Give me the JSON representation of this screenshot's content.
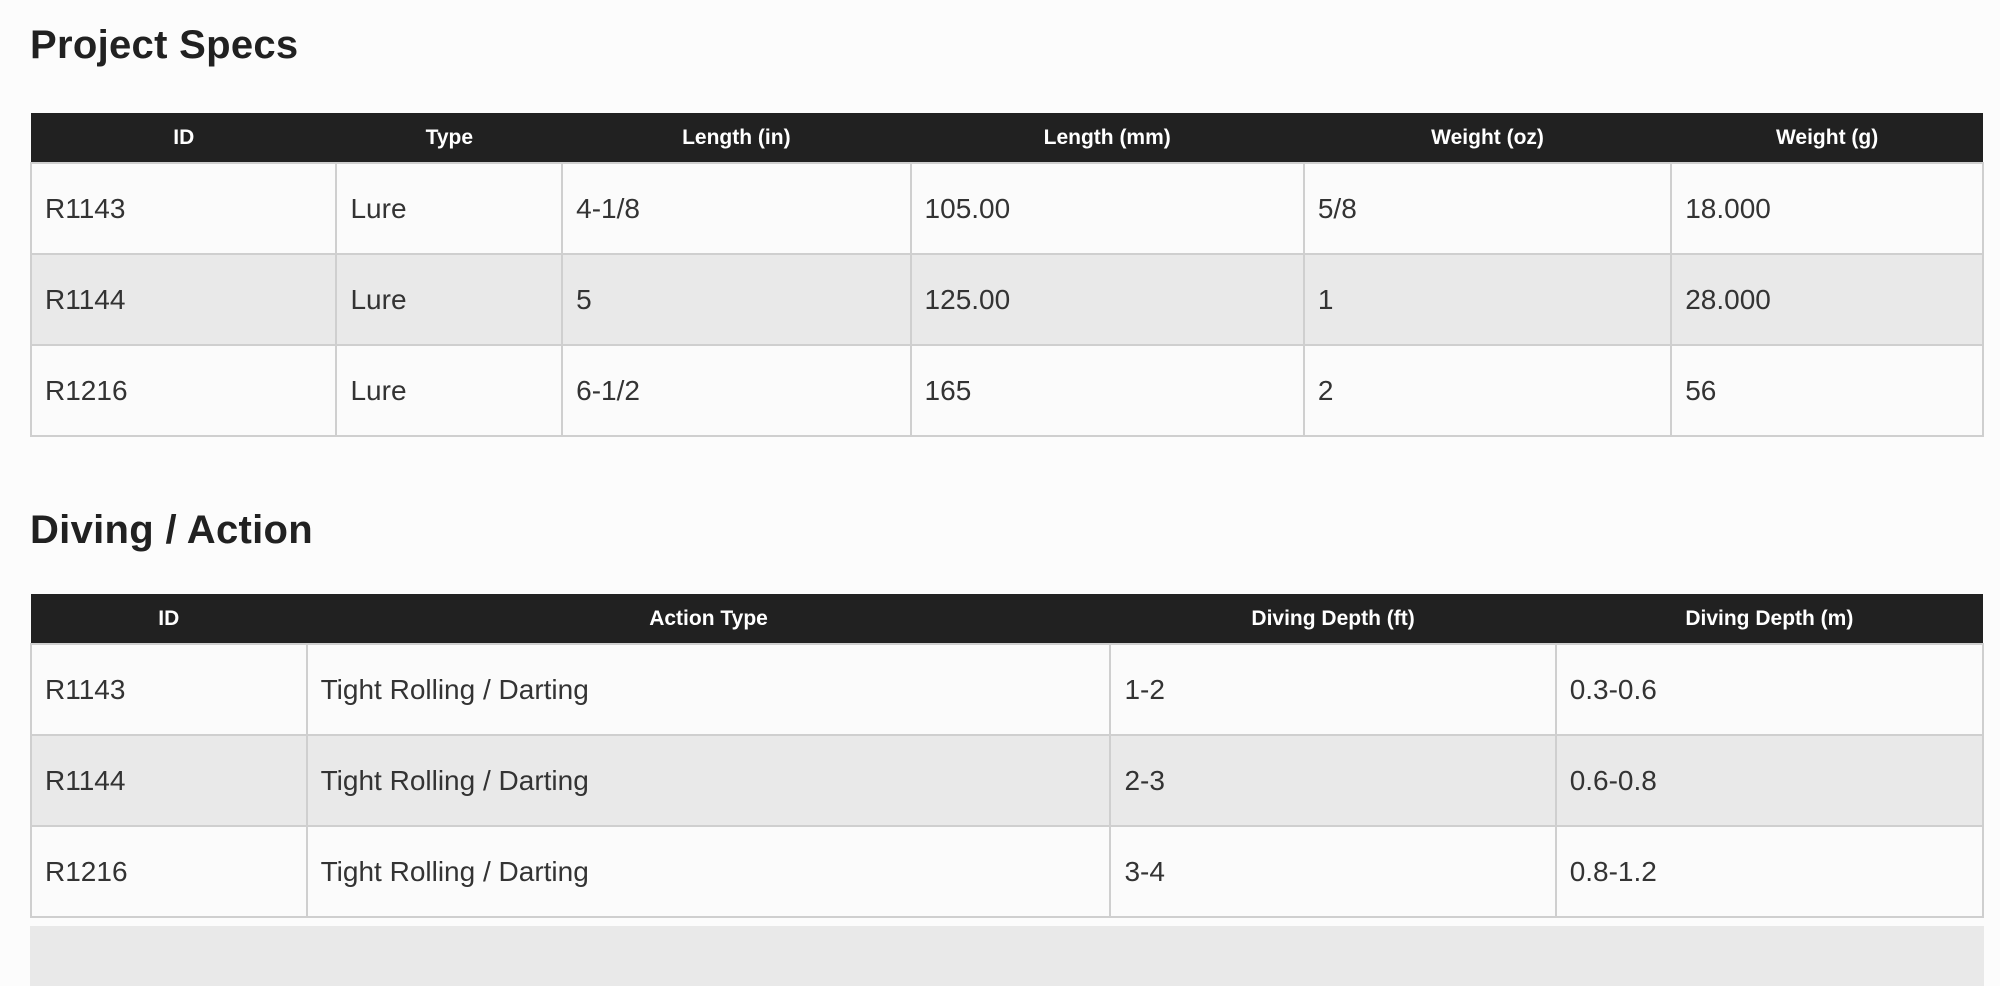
{
  "sections": [
    {
      "title": "Project Specs",
      "columns": [
        "ID",
        "Type",
        "Length (in)",
        "Length (mm)",
        "Weight (oz)",
        "Weight (g)"
      ],
      "col_widths": [
        "15.65%",
        "11.56%",
        "17.85%",
        "20.15%",
        "18.82%",
        "15.97%"
      ],
      "rows": [
        [
          "R1143",
          "Lure",
          "4-1/8",
          "105.00",
          "5/8",
          "18.000"
        ],
        [
          "R1144",
          "Lure",
          "5",
          "125.00",
          "1",
          "28.000"
        ],
        [
          "R1216",
          "Lure",
          "6-1/2",
          "165",
          "2",
          "56"
        ]
      ]
    },
    {
      "title": "Diving / Action",
      "columns": [
        "ID",
        "Action Type",
        "Diving Depth (ft)",
        "Diving Depth (m)"
      ],
      "col_widths": [
        "14.12%",
        "41.18%",
        "22.81%",
        "21.89%"
      ],
      "rows": [
        [
          "R1143",
          "Tight Rolling / Darting",
          "1-2",
          "0.3-0.6"
        ],
        [
          "R1144",
          "Tight Rolling / Darting",
          "2-3",
          "0.6-0.8"
        ],
        [
          "R1216",
          "Tight Rolling / Darting",
          "3-4",
          "0.8-1.2"
        ]
      ]
    }
  ],
  "colors": {
    "header_bg": "#212121",
    "header_text": "#ffffff",
    "row_odd": "#fbfbfb",
    "row_even": "#e9e9e9",
    "border": "#cfcfcf",
    "title_text": "#212121",
    "cell_text": "#333333",
    "page_bg": "#fcfcfc",
    "cutoff_bg": "#e9e9e9"
  }
}
